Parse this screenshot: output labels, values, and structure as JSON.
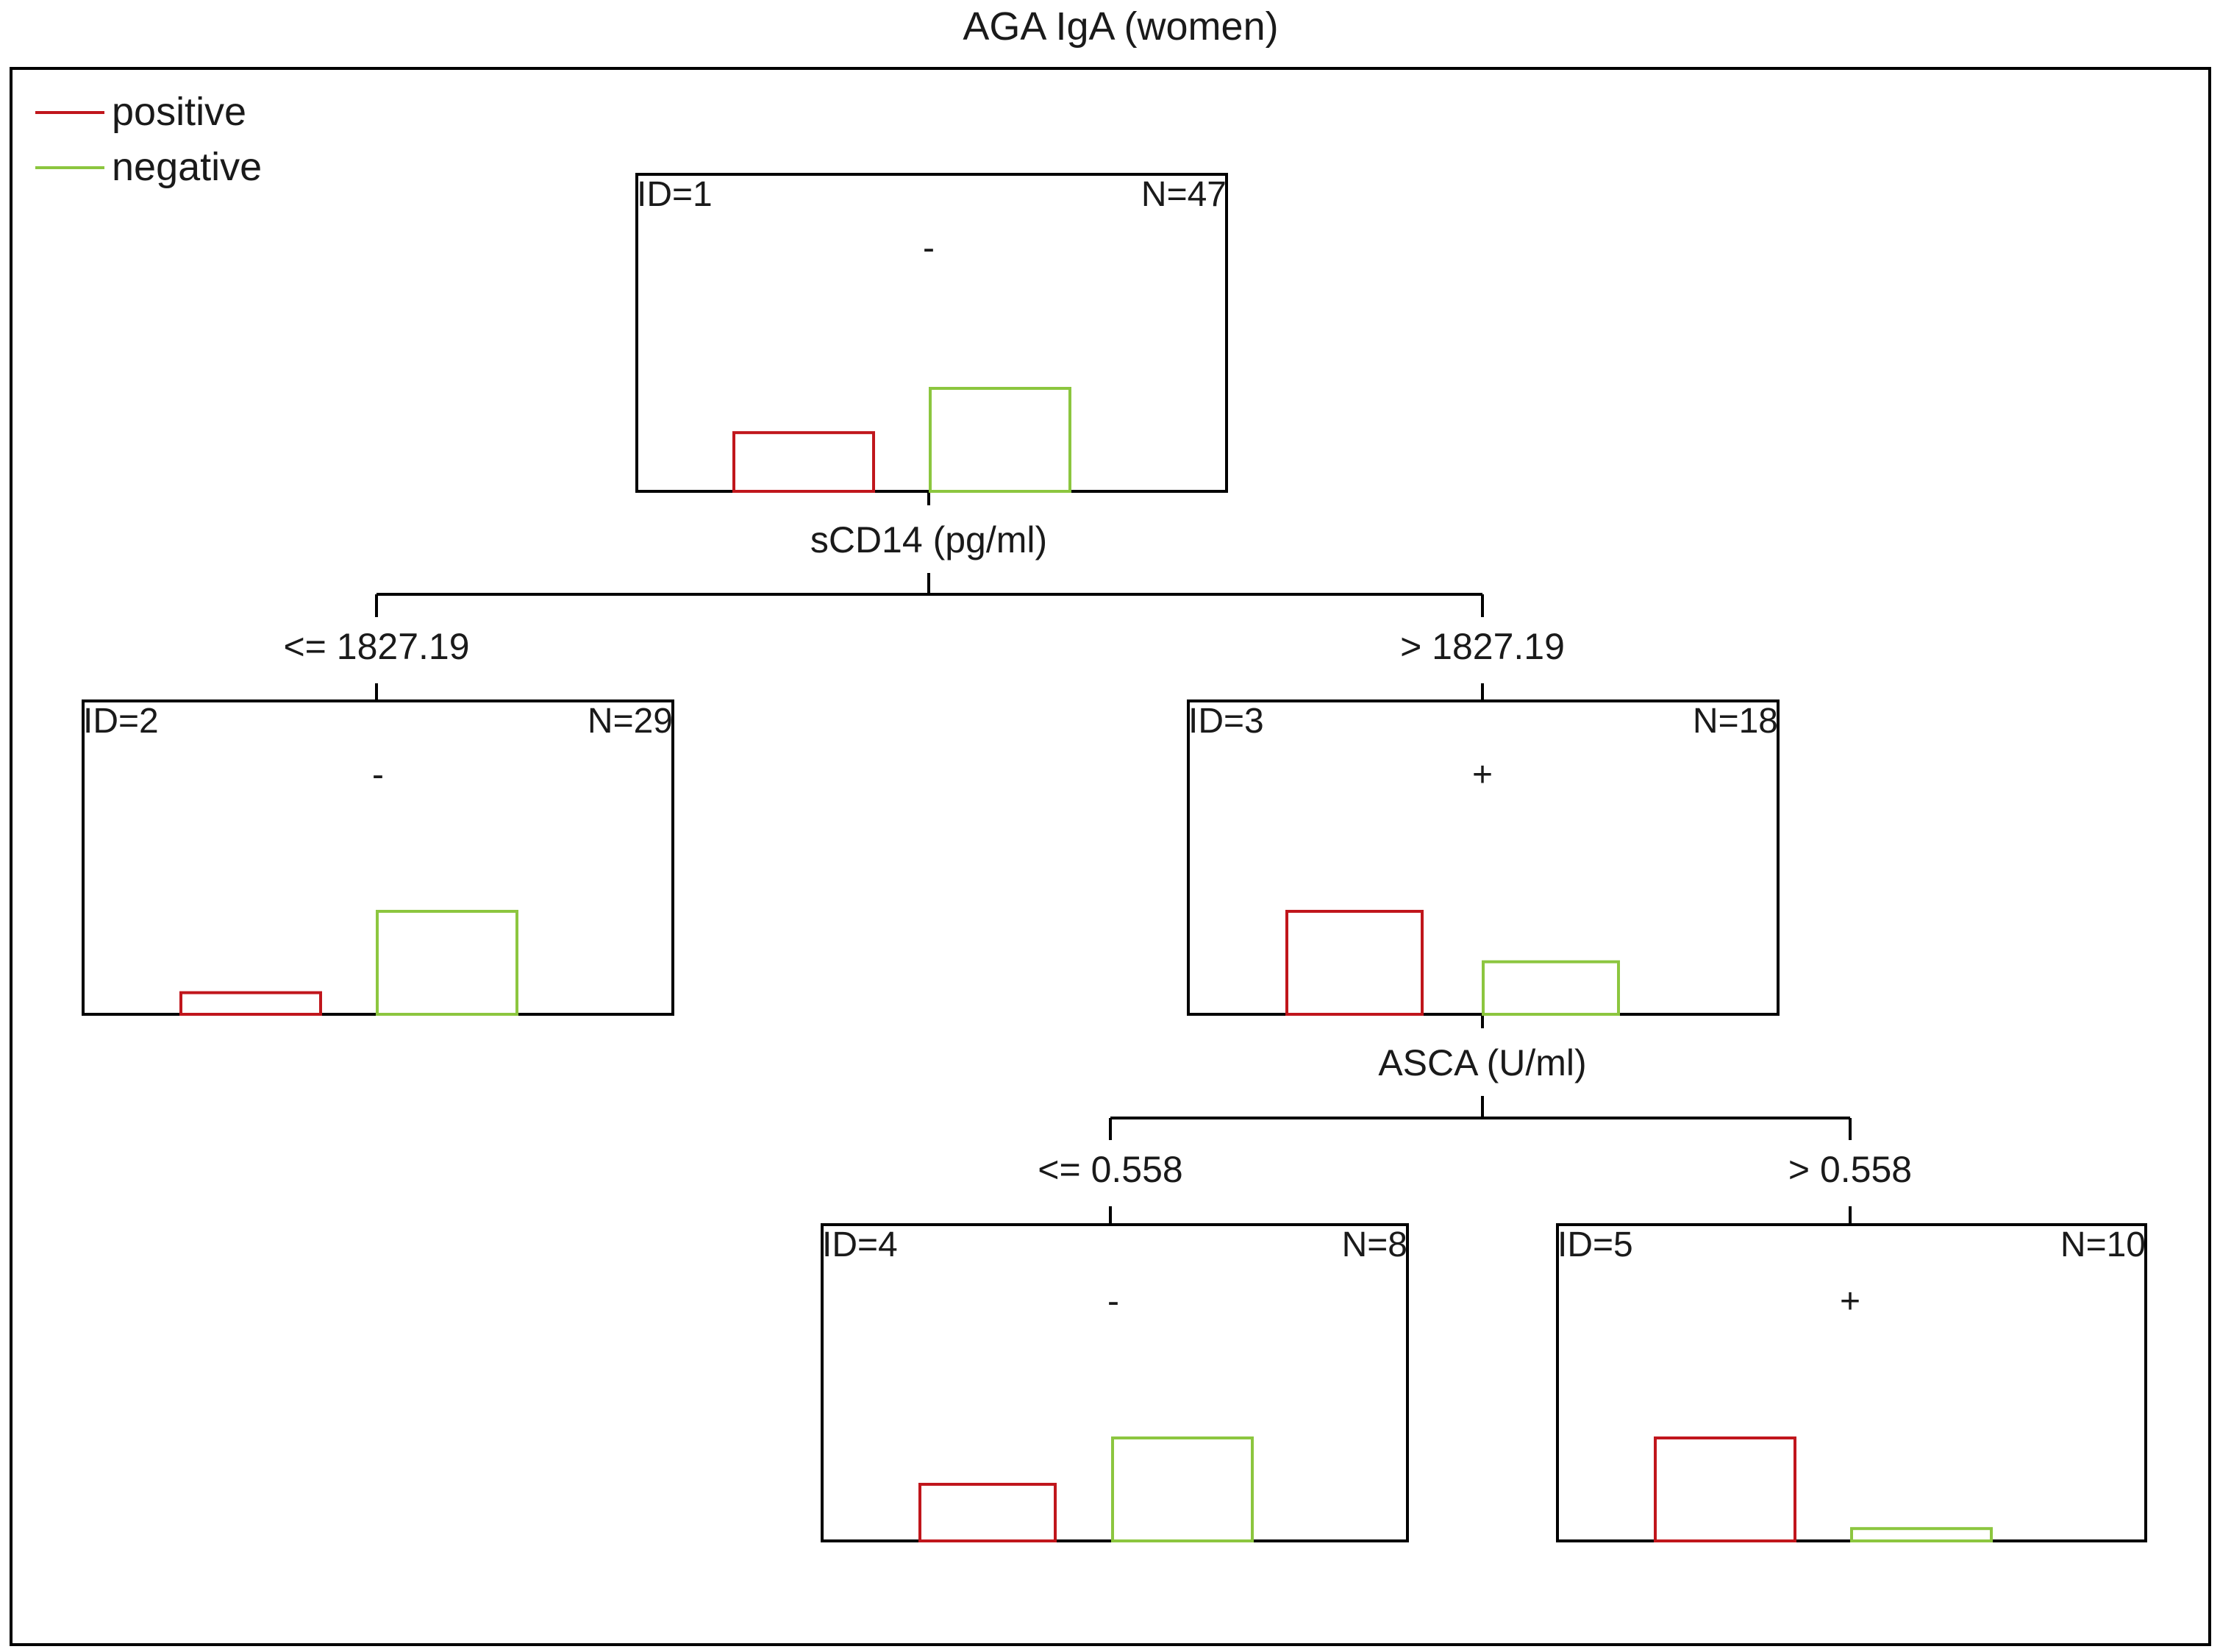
{
  "title": "AGA IgA (women)",
  "legend": [
    {
      "label": "positive",
      "color": "#c0161c"
    },
    {
      "label": "negative",
      "color": "#8cc63f"
    }
  ],
  "colors": {
    "frame": "#000000",
    "positive": "#c0161c",
    "negative": "#8cc63f"
  },
  "nodes": [
    {
      "id": "1",
      "id_label": "ID=1",
      "n_label": "N=47",
      "prediction": "-",
      "bars": {
        "positive": 0.57,
        "negative": 1.0
      }
    },
    {
      "id": "2",
      "id_label": "ID=2",
      "n_label": "N=29",
      "prediction": "-",
      "bars": {
        "positive": 0.21,
        "negative": 1.0
      }
    },
    {
      "id": "3",
      "id_label": "ID=3",
      "n_label": "N=18",
      "prediction": "+",
      "bars": {
        "positive": 1.0,
        "negative": 0.51
      }
    },
    {
      "id": "4",
      "id_label": "ID=4",
      "n_label": "N=8",
      "prediction": "-",
      "bars": {
        "positive": 0.55,
        "negative": 1.0
      }
    },
    {
      "id": "5",
      "id_label": "ID=5",
      "n_label": "N=10",
      "prediction": "+",
      "bars": {
        "positive": 1.0,
        "negative": 0.12
      }
    }
  ],
  "splits": [
    {
      "parent": "1",
      "variable": "sCD14 (pg/ml)",
      "left_label": "<= 1827.19",
      "right_label": "> 1827.19",
      "left_child": "2",
      "right_child": "3"
    },
    {
      "parent": "3",
      "variable": "ASCA (U/ml)",
      "left_label": "<= 0.558",
      "right_label": "> 0.558",
      "left_child": "4",
      "right_child": "5"
    }
  ]
}
